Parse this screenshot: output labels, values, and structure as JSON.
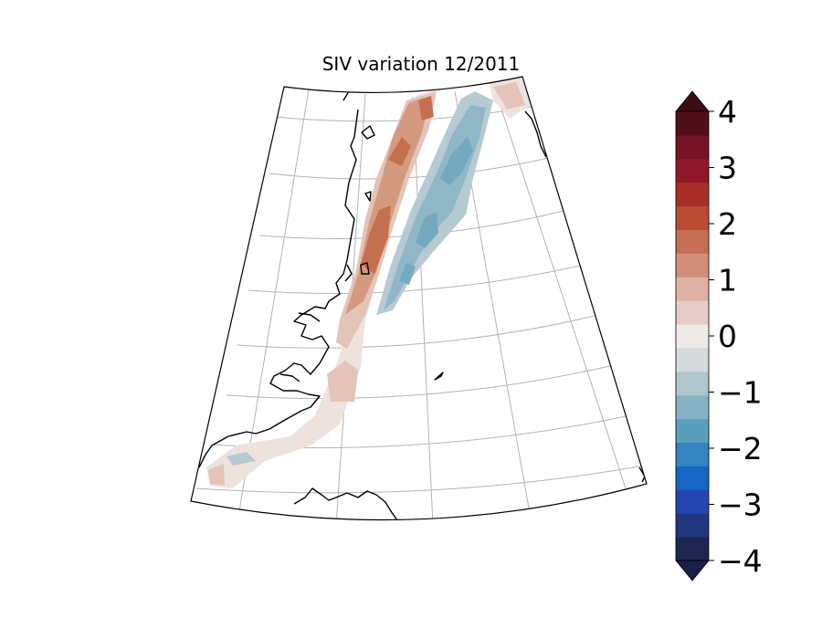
{
  "title": "SIV variation 12/2011",
  "colorbar": {
    "min": -4,
    "max": 4,
    "extend": "both",
    "tick_labels": [
      "4",
      "3",
      "2",
      "1",
      "0",
      "−1",
      "−2",
      "−3",
      "−4"
    ],
    "colors": [
      "#1e2650",
      "#22367e",
      "#2446b0",
      "#1566c4",
      "#3184bf",
      "#5aa0ba",
      "#87b2c4",
      "#b0c5ce",
      "#d5dadc",
      "#eeeae9",
      "#e7cdc9",
      "#dfb0a4",
      "#d28e78",
      "#c46e53",
      "#b94c33",
      "#a82f27",
      "#911828",
      "#741426",
      "#520f1c"
    ],
    "over_color": "#3d0c14",
    "under_color": "#1b2046"
  },
  "map": {
    "projection": "conic",
    "gridlines": true,
    "region": "Fram Strait / East Greenland coast",
    "field_colors": {
      "strong_positive": "#c4704f",
      "medium_positive": "#d49a80",
      "light_positive": "#e4c3b8",
      "faint_positive": "#eee2df",
      "light_negative": "#b6cad2",
      "medium_negative": "#8fb7c6",
      "strong_negative": "#74a9c0"
    }
  }
}
